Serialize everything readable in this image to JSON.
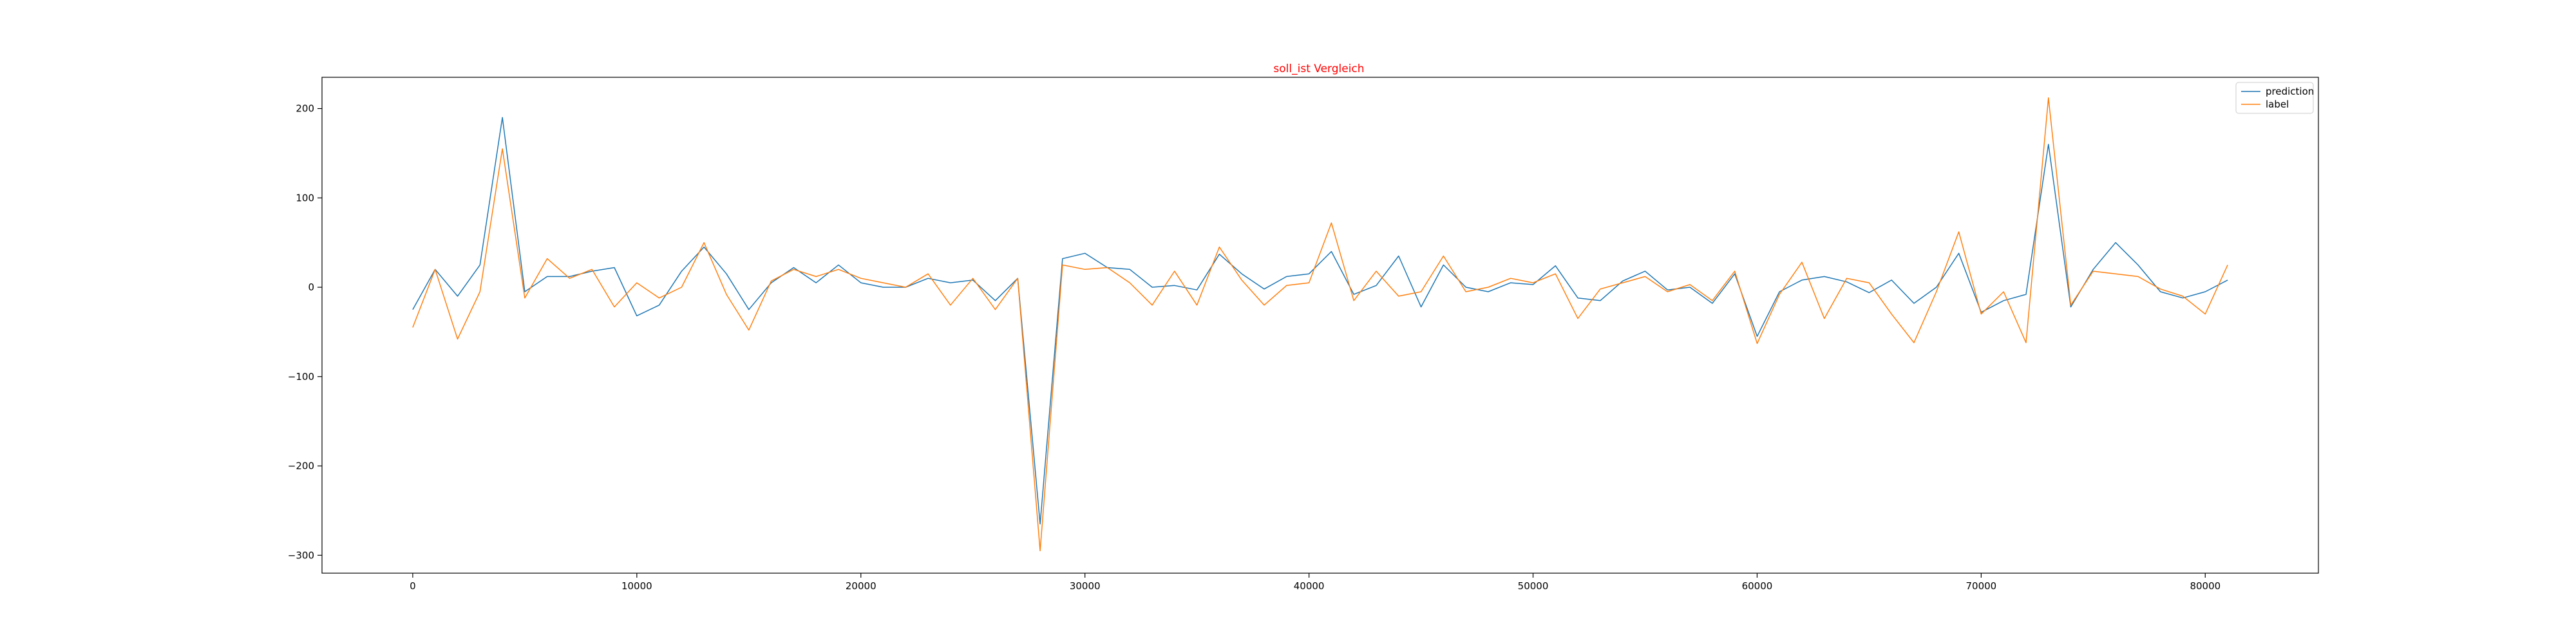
{
  "chart_data": {
    "type": "line",
    "title": "soll_ist Vergleich",
    "title_color": "#ff0000",
    "xlabel": "",
    "ylabel": "",
    "xlim": [
      -4050,
      85050
    ],
    "ylim": [
      -320,
      235
    ],
    "x_ticks": [
      0,
      10000,
      20000,
      30000,
      40000,
      50000,
      60000,
      70000,
      80000
    ],
    "y_ticks": [
      -300,
      -200,
      -100,
      0,
      100,
      200
    ],
    "grid": false,
    "legend_position": "top-right",
    "x": [
      0,
      1000,
      2000,
      3000,
      4000,
      5000,
      6000,
      7000,
      8000,
      9000,
      10000,
      11000,
      12000,
      13000,
      14000,
      15000,
      16000,
      17000,
      18000,
      19000,
      20000,
      21000,
      22000,
      23000,
      24000,
      25000,
      26000,
      27000,
      28000,
      29000,
      30000,
      31000,
      32000,
      33000,
      34000,
      35000,
      36000,
      37000,
      38000,
      39000,
      40000,
      41000,
      42000,
      43000,
      44000,
      45000,
      46000,
      47000,
      48000,
      49000,
      50000,
      51000,
      52000,
      53000,
      54000,
      55000,
      56000,
      57000,
      58000,
      59000,
      60000,
      61000,
      62000,
      63000,
      64000,
      65000,
      66000,
      67000,
      68000,
      69000,
      70000,
      71000,
      72000,
      73000,
      74000,
      75000,
      76000,
      77000,
      78000,
      79000,
      80000,
      81000
    ],
    "series": [
      {
        "name": "prediction",
        "color": "#1f77b4",
        "values": [
          -25,
          20,
          -10,
          25,
          190,
          -5,
          12,
          12,
          18,
          22,
          -32,
          -20,
          18,
          45,
          15,
          -25,
          5,
          22,
          5,
          25,
          5,
          0,
          0,
          10,
          5,
          8,
          -15,
          10,
          -265,
          32,
          38,
          22,
          20,
          0,
          2,
          -3,
          37,
          15,
          -2,
          12,
          15,
          40,
          -8,
          2,
          35,
          -22,
          25,
          0,
          -5,
          5,
          3,
          24,
          -12,
          -15,
          7,
          18,
          -3,
          0,
          -18,
          15,
          -55,
          -5,
          8,
          12,
          6,
          -6,
          8,
          -18,
          0,
          38,
          -28,
          -15,
          -8,
          160,
          -22,
          20,
          50,
          25,
          -5,
          -12,
          -5,
          8
        ]
      },
      {
        "name": "label",
        "color": "#ff7f0e",
        "values": [
          -45,
          20,
          -58,
          -5,
          155,
          -12,
          32,
          10,
          20,
          -22,
          5,
          -12,
          0,
          50,
          -8,
          -48,
          7,
          20,
          12,
          20,
          10,
          5,
          0,
          15,
          -20,
          10,
          -25,
          10,
          -295,
          25,
          20,
          22,
          5,
          -20,
          18,
          -20,
          45,
          8,
          -20,
          2,
          5,
          72,
          -15,
          18,
          -10,
          -5,
          35,
          -5,
          0,
          10,
          5,
          15,
          -35,
          -2,
          5,
          12,
          -5,
          3,
          -15,
          18,
          -63,
          -8,
          28,
          -35,
          10,
          5,
          -30,
          -62,
          -5,
          62,
          -30,
          -5,
          -62,
          212,
          -20,
          18,
          15,
          12,
          -2,
          -10,
          -30,
          25
        ]
      }
    ]
  }
}
